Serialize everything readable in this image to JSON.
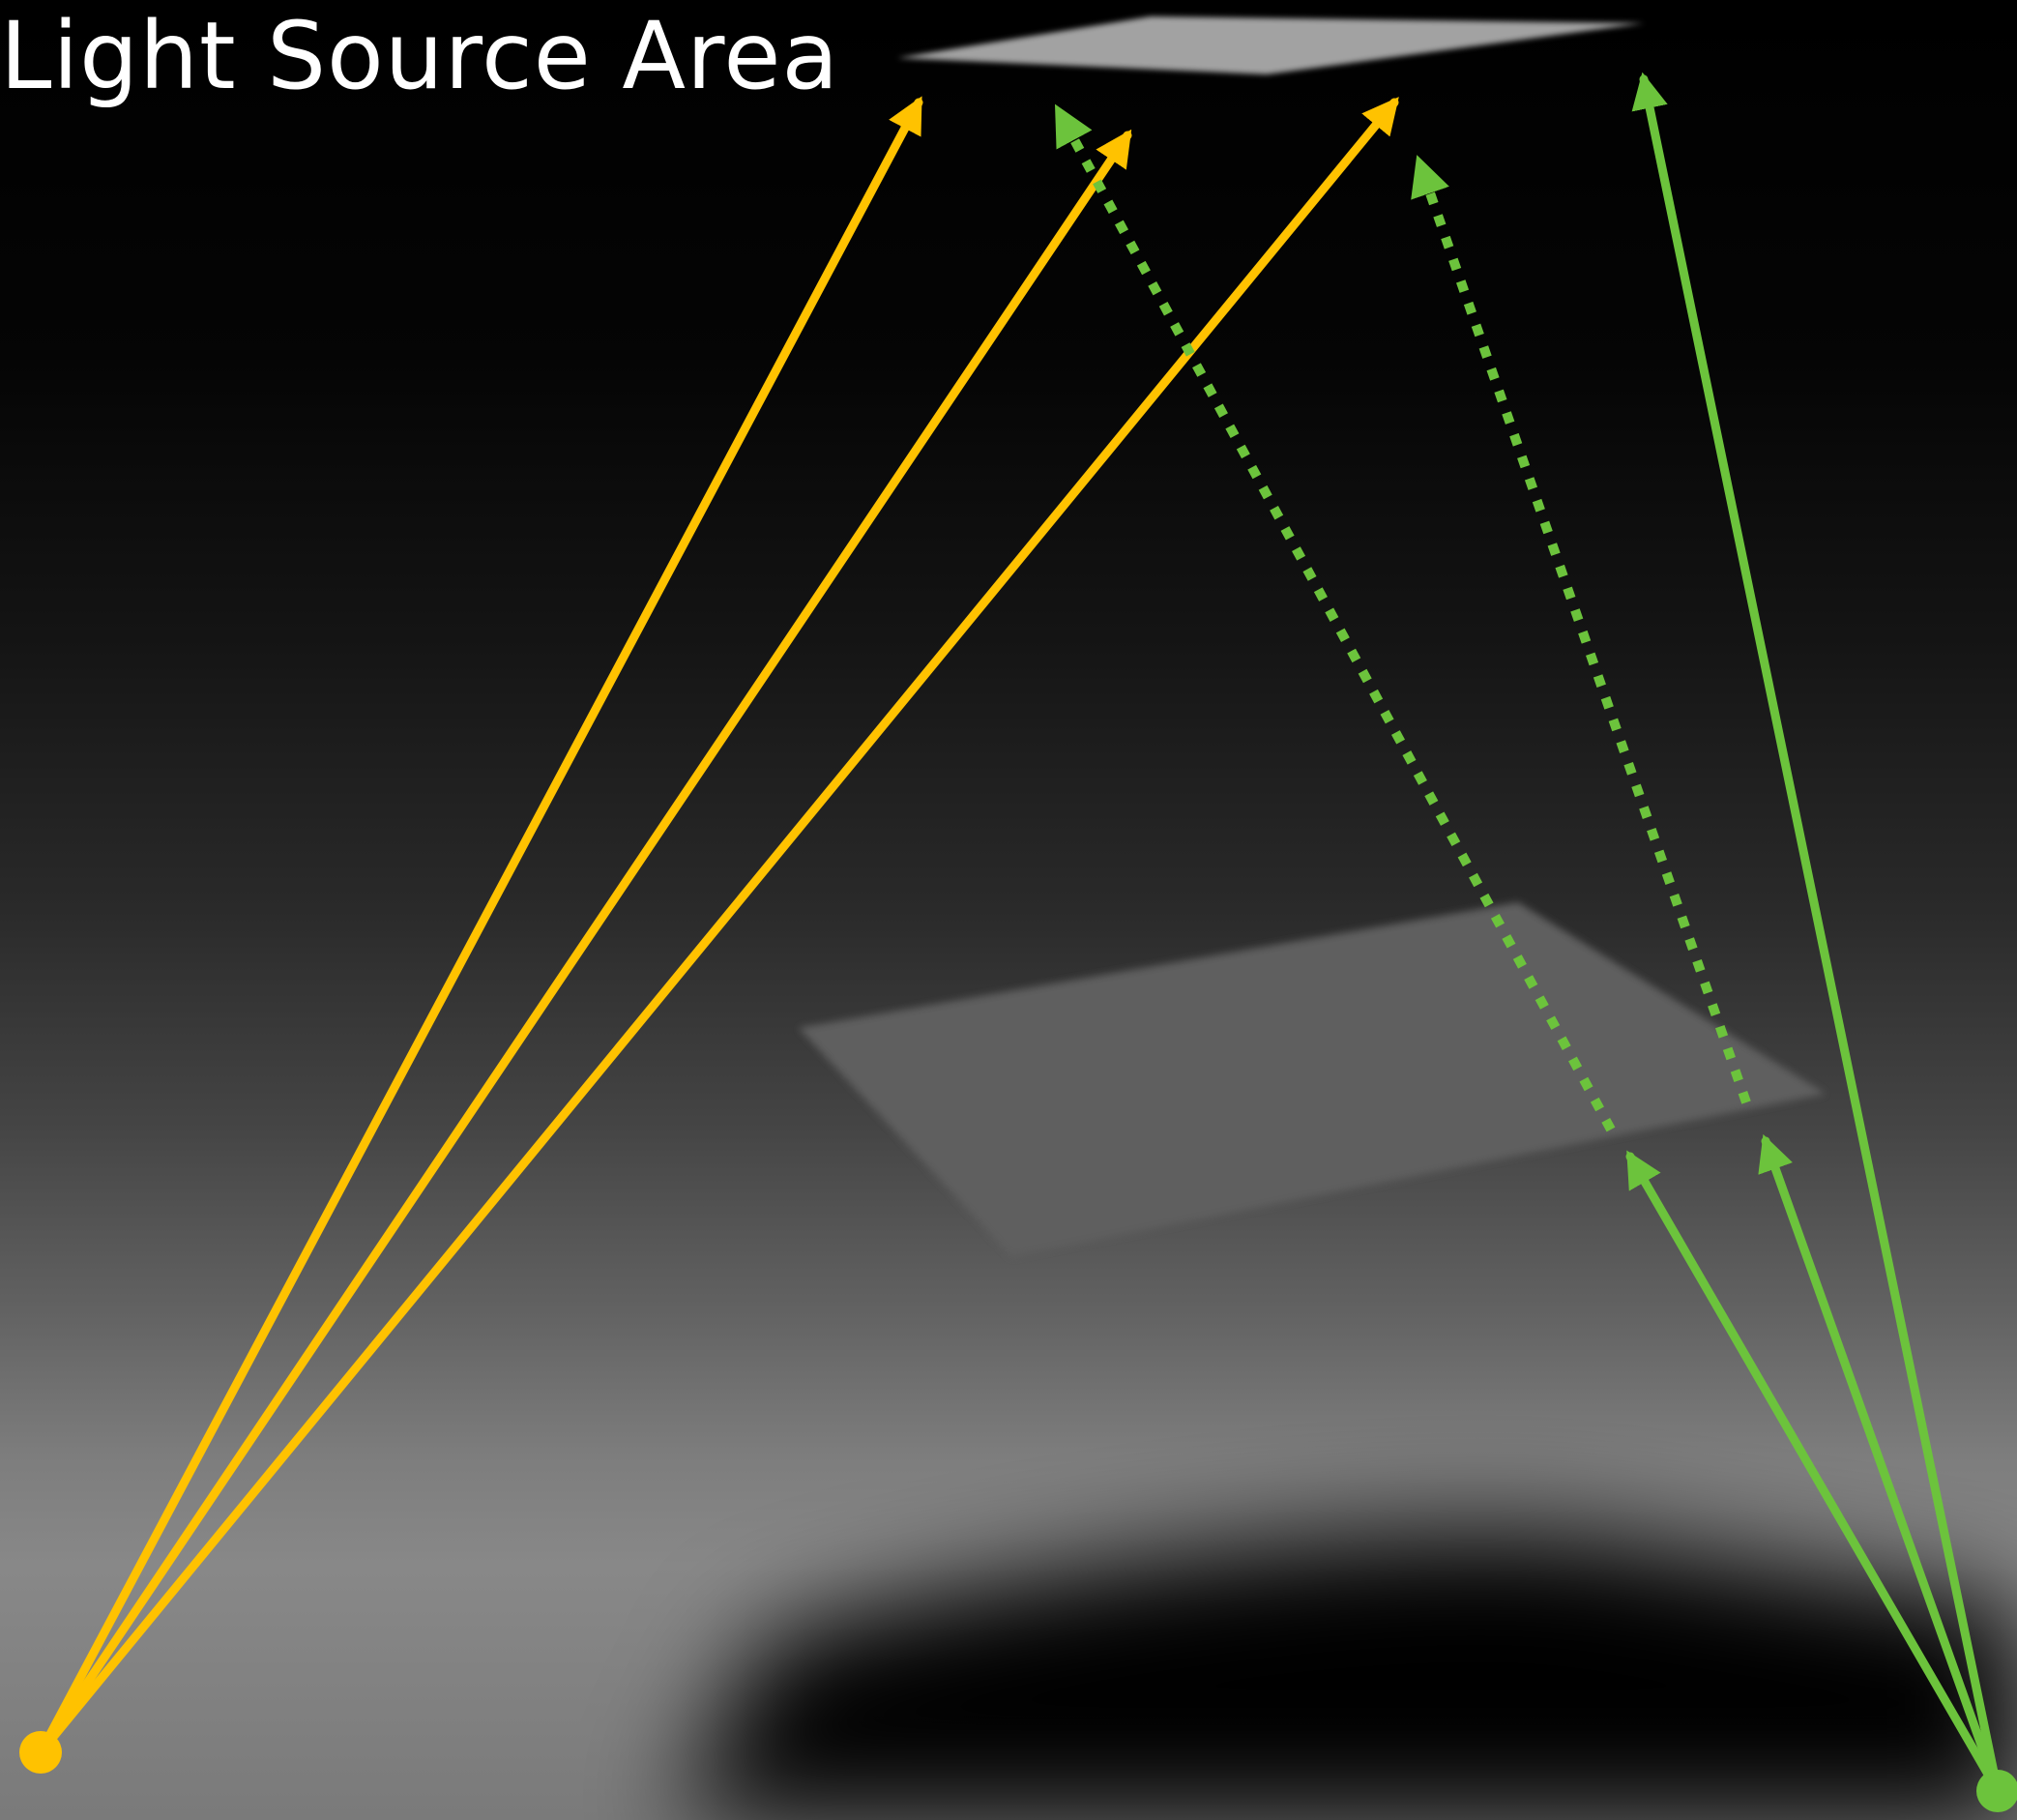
{
  "label": {
    "text": "Light Source Area"
  },
  "colors": {
    "light_ray": "#ffc200",
    "shadow_ray": "#6cc33c",
    "light_source": "#a2a2a2",
    "occluder": "#5e5e5e",
    "shadow": "#000000"
  }
}
